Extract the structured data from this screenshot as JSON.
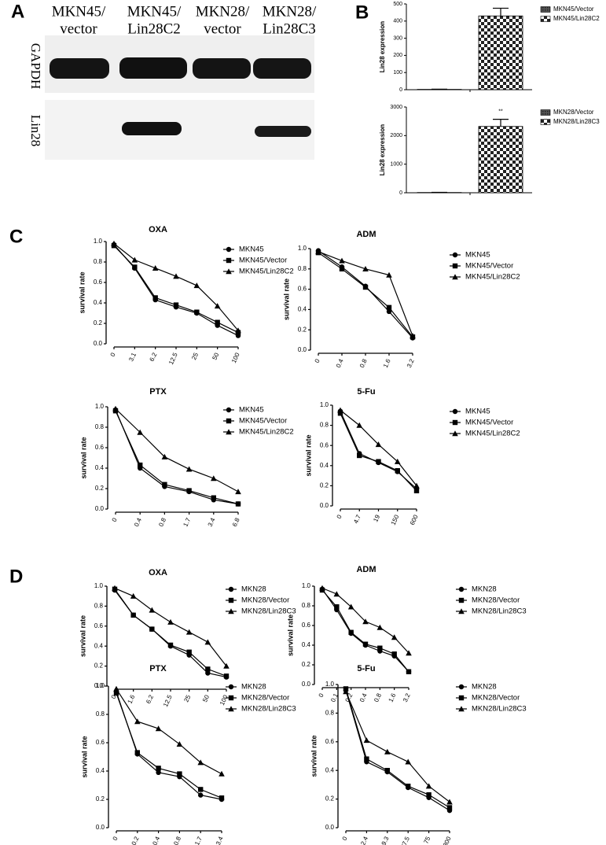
{
  "panel_labels": [
    "A",
    "B",
    "C",
    "D"
  ],
  "blot": {
    "columns": [
      [
        "MKN45/",
        "vector"
      ],
      [
        "MKN45/",
        "Lin28C2"
      ],
      [
        "MKN28/",
        "vector"
      ],
      [
        "MKN28/",
        "Lin28C3"
      ]
    ],
    "rows": [
      "GAPDH",
      "Lin28"
    ]
  },
  "chart_data": [
    {
      "type": "bar",
      "ylabel": "Lin28 expression",
      "ylim": [
        0,
        500
      ],
      "yticks": [
        0,
        100,
        200,
        300,
        400,
        500
      ],
      "annotation": "**",
      "series": [
        {
          "name": "MKN45/Vector",
          "values": [
            2
          ],
          "errors": [
            1
          ]
        },
        {
          "name": "MKN45/Lin28C2",
          "values": [
            430
          ],
          "errors": [
            45
          ]
        }
      ]
    },
    {
      "type": "bar",
      "ylabel": "Lin28 expression",
      "ylim": [
        0,
        3000
      ],
      "yticks": [
        0,
        1000,
        2000,
        3000
      ],
      "annotation": "**",
      "series": [
        {
          "name": "MKN28/Vector",
          "values": [
            10
          ],
          "errors": [
            5
          ]
        },
        {
          "name": "MKN28/Lin28C3",
          "values": [
            2320
          ],
          "errors": [
            250
          ]
        }
      ]
    },
    {
      "type": "line",
      "title": "OXA",
      "ylabel": "survival rate",
      "categories": [
        "0",
        "3.1",
        "6.2",
        "12.5",
        "25",
        "50",
        "100"
      ],
      "ylim": [
        0,
        1
      ],
      "yticks": [
        {
          "value": 0,
          "label": "0.0"
        },
        0.2,
        0.4,
        0.6,
        0.8,
        {
          "value": 1,
          "label": "1.0"
        }
      ],
      "series": [
        {
          "name": "MKN45",
          "marker": "circle",
          "values": [
            0.97,
            0.74,
            0.43,
            0.36,
            0.3,
            0.18,
            0.08
          ]
        },
        {
          "name": "MKN45/Vector",
          "marker": "square",
          "values": [
            0.96,
            0.75,
            0.45,
            0.38,
            0.31,
            0.21,
            0.11
          ]
        },
        {
          "name": "MKN45/Lin28C2",
          "marker": "triangle",
          "values": [
            0.98,
            0.82,
            0.74,
            0.66,
            0.57,
            0.37,
            0.13
          ]
        }
      ]
    },
    {
      "type": "line",
      "title": "ADM",
      "ylabel": "survival rate",
      "categories": [
        "0",
        "0.4",
        "0.8",
        "1.6",
        "3.2"
      ],
      "ylim": [
        0,
        1
      ],
      "yticks": [
        {
          "value": 0,
          "label": "0.0"
        },
        0.2,
        0.4,
        0.6,
        0.8,
        {
          "value": 1,
          "label": "1.0"
        }
      ],
      "series": [
        {
          "name": "MKN45",
          "marker": "circle",
          "values": [
            0.98,
            0.82,
            0.63,
            0.38,
            0.12
          ]
        },
        {
          "name": "MKN45/Vector",
          "marker": "square",
          "values": [
            0.96,
            0.8,
            0.62,
            0.42,
            0.13
          ]
        },
        {
          "name": "MKN45/Lin28C2",
          "marker": "triangle",
          "values": [
            0.97,
            0.88,
            0.8,
            0.74,
            0.14
          ]
        }
      ]
    },
    {
      "type": "line",
      "title": "PTX",
      "ylabel": "survival rate",
      "categories": [
        "0",
        "0.4",
        "0.8",
        "1.7",
        "3.4",
        "6.8"
      ],
      "ylim": [
        0,
        1
      ],
      "yticks": [
        {
          "value": 0,
          "label": "0.0"
        },
        0.2,
        0.4,
        0.6,
        0.8,
        {
          "value": 1,
          "label": "1.0"
        }
      ],
      "series": [
        {
          "name": "MKN45",
          "marker": "circle",
          "values": [
            0.97,
            0.4,
            0.22,
            0.17,
            0.09,
            0.05
          ]
        },
        {
          "name": "MKN45/Vector",
          "marker": "square",
          "values": [
            0.96,
            0.43,
            0.24,
            0.18,
            0.11,
            0.05
          ]
        },
        {
          "name": "MKN45/Lin28C2",
          "marker": "triangle",
          "values": [
            0.98,
            0.75,
            0.51,
            0.39,
            0.3,
            0.17
          ]
        }
      ]
    },
    {
      "type": "line",
      "title": "5-Fu",
      "ylabel": "survival rate",
      "categories": [
        "0",
        "4.7",
        "19",
        "150",
        "600"
      ],
      "ylim": [
        0,
        1
      ],
      "yticks": [
        {
          "value": 0,
          "label": "0.0"
        },
        0.2,
        0.4,
        0.6,
        0.8,
        {
          "value": 1,
          "label": "1.0"
        }
      ],
      "series": [
        {
          "name": "MKN45",
          "marker": "circle",
          "values": [
            0.94,
            0.52,
            0.43,
            0.34,
            0.17
          ]
        },
        {
          "name": "MKN45/Vector",
          "marker": "square",
          "values": [
            0.92,
            0.5,
            0.44,
            0.35,
            0.15
          ]
        },
        {
          "name": "MKN45/Lin28C2",
          "marker": "triangle",
          "values": [
            0.95,
            0.8,
            0.61,
            0.44,
            0.2
          ]
        }
      ]
    },
    {
      "type": "line",
      "title": "OXA",
      "ylabel": "survival rate",
      "categories": [
        "0",
        "1.6",
        "6.2",
        "12.5",
        "25",
        "50",
        "100"
      ],
      "ylim": [
        0,
        1
      ],
      "yticks": [
        {
          "value": 0,
          "label": "0.0"
        },
        0.2,
        0.4,
        0.6,
        0.8,
        {
          "value": 1,
          "label": "1.0"
        }
      ],
      "series": [
        {
          "name": "MKN28",
          "marker": "circle",
          "values": [
            0.96,
            0.71,
            0.57,
            0.4,
            0.31,
            0.13,
            0.09
          ]
        },
        {
          "name": "MKN28/Vector",
          "marker": "square",
          "values": [
            0.97,
            0.71,
            0.57,
            0.41,
            0.34,
            0.17,
            0.1
          ]
        },
        {
          "name": "MKN28/Lin28C3",
          "marker": "triangle",
          "values": [
            0.98,
            0.9,
            0.76,
            0.64,
            0.54,
            0.44,
            0.2
          ]
        }
      ]
    },
    {
      "type": "line",
      "title": "ADM",
      "ylabel": "survival rate",
      "categories": [
        "0",
        "0.1",
        "0.2",
        "0.4",
        "0.8",
        "1.6",
        "3.2"
      ],
      "ylim": [
        0,
        1
      ],
      "yticks": [
        {
          "value": 0,
          "label": "0.0"
        },
        0.2,
        0.4,
        0.6,
        0.8,
        {
          "value": 1,
          "label": "1.0"
        }
      ],
      "series": [
        {
          "name": "MKN28",
          "marker": "circle",
          "values": [
            0.97,
            0.76,
            0.52,
            0.4,
            0.34,
            0.29,
            0.13
          ]
        },
        {
          "name": "MKN28/Vector",
          "marker": "square",
          "values": [
            0.96,
            0.79,
            0.53,
            0.41,
            0.37,
            0.31,
            0.13
          ]
        },
        {
          "name": "MKN28/Lin28C3",
          "marker": "triangle",
          "values": [
            0.98,
            0.92,
            0.79,
            0.64,
            0.58,
            0.48,
            0.32
          ]
        }
      ]
    },
    {
      "type": "line",
      "title": "PTX",
      "ylabel": "survival rate",
      "categories": [
        "0",
        "0.2",
        "0.4",
        "0.8",
        "1.7",
        "3.4"
      ],
      "ylim": [
        0,
        1
      ],
      "yticks": [
        {
          "value": 0,
          "label": "0.0"
        },
        0.2,
        0.4,
        0.6,
        0.8,
        {
          "value": 1,
          "label": "1.0"
        }
      ],
      "series": [
        {
          "name": "MKN28",
          "marker": "circle",
          "values": [
            0.96,
            0.52,
            0.39,
            0.36,
            0.23,
            0.2
          ]
        },
        {
          "name": "MKN28/Vector",
          "marker": "square",
          "values": [
            0.95,
            0.53,
            0.42,
            0.38,
            0.27,
            0.21
          ]
        },
        {
          "name": "MKN28/Lin28C3",
          "marker": "triangle",
          "values": [
            0.98,
            0.75,
            0.7,
            0.59,
            0.46,
            0.38
          ]
        }
      ]
    },
    {
      "type": "line",
      "title": "5-Fu",
      "ylabel": "survival rate",
      "categories": [
        "0",
        "2.4",
        "9.3",
        "37.5",
        "75",
        "300"
      ],
      "ylim": [
        0,
        1
      ],
      "yticks": [
        {
          "value": 0,
          "label": "0.0"
        },
        0.2,
        0.4,
        0.6,
        0.8,
        {
          "value": 1,
          "label": "1.0"
        }
      ],
      "series": [
        {
          "name": "MKN28",
          "marker": "circle",
          "values": [
            0.96,
            0.46,
            0.39,
            0.28,
            0.21,
            0.12
          ]
        },
        {
          "name": "MKN28/Vector",
          "marker": "square",
          "values": [
            0.97,
            0.48,
            0.4,
            0.29,
            0.23,
            0.14
          ]
        },
        {
          "name": "MKN28/Lin28C3",
          "marker": "triangle",
          "values": [
            0.95,
            0.61,
            0.53,
            0.46,
            0.29,
            0.18
          ]
        }
      ]
    }
  ]
}
